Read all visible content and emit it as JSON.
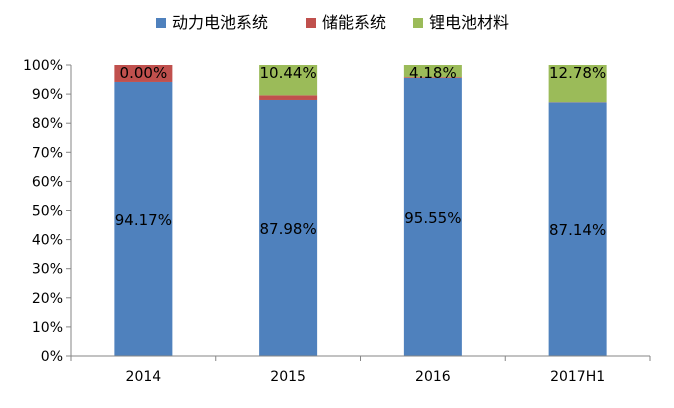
{
  "chart_data": {
    "type": "bar",
    "stacked": true,
    "categories": [
      "2014",
      "2015",
      "2016",
      "2017H1"
    ],
    "series": [
      {
        "name": "动力电池系统",
        "color": "#4F81BD",
        "values": [
          94.17,
          87.98,
          95.55,
          87.14
        ]
      },
      {
        "name": "储能系统",
        "color": "#C0504D",
        "values": [
          5.83,
          1.58,
          0.27,
          0.08
        ]
      },
      {
        "name": "锂电池材料",
        "color": "#9BBB59",
        "values": [
          0.0,
          10.44,
          4.18,
          12.78
        ]
      }
    ],
    "data_labels": [
      {
        "category": "2014",
        "segment_labels": [
          "94.17%",
          "0.00%"
        ]
      },
      {
        "category": "2015",
        "segment_labels": [
          "87.98%",
          "10.44%"
        ]
      },
      {
        "category": "2016",
        "segment_labels": [
          "95.55%",
          "4.18%"
        ]
      },
      {
        "category": "2017H1",
        "segment_labels": [
          "87.14%",
          "12.78%"
        ]
      }
    ],
    "y_ticks": [
      "0%",
      "10%",
      "20%",
      "30%",
      "40%",
      "50%",
      "60%",
      "70%",
      "80%",
      "90%",
      "100%"
    ],
    "ylim": [
      0,
      100
    ],
    "legend_position": "top",
    "grid": false
  }
}
